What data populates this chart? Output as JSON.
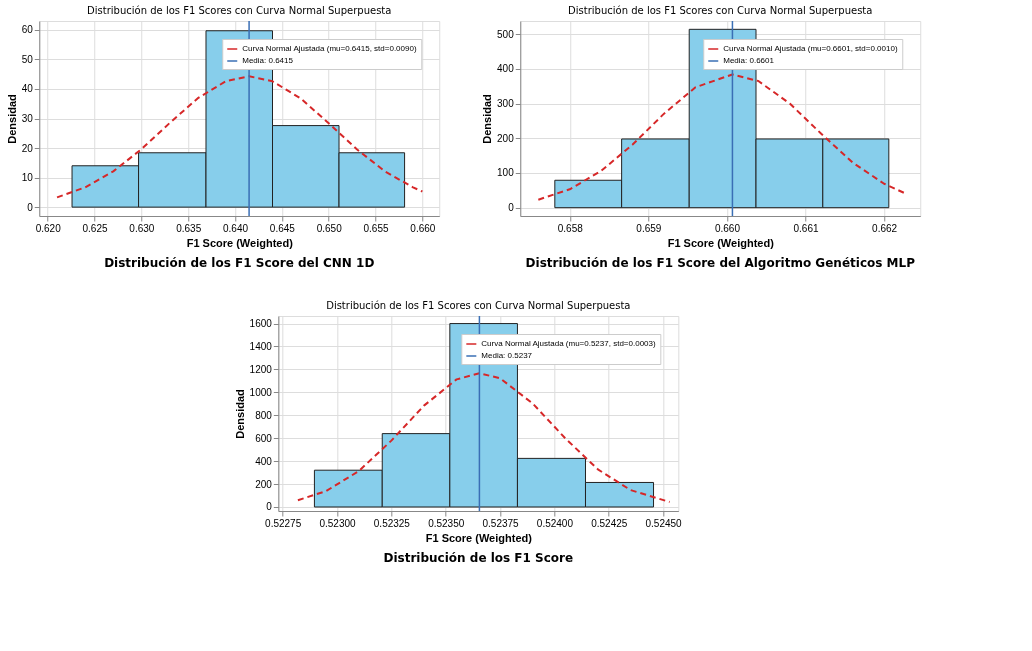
{
  "chart_data": [
    {
      "type": "histogram",
      "title": "Distribución de los F1 Scores con Curva Normal Superpuesta",
      "xlabel": "F1 Score (Weighted)",
      "ylabel": "Densidad",
      "color": "#87ceeb",
      "bins": [
        0.6226,
        0.6297,
        0.6369,
        0.644,
        0.6511,
        0.6581
      ],
      "values": [
        14.0,
        18.4,
        59.7,
        27.6,
        18.4
      ],
      "series": [
        {
          "type": "line",
          "name": "Curva Normal Ajustada (mu=0.6415, std=0.0090)",
          "color": "#d62728",
          "line_style": "dashed",
          "x": [
            0.621,
            0.624,
            0.627,
            0.63,
            0.633,
            0.636,
            0.639,
            0.6415,
            0.644,
            0.647,
            0.65,
            0.653,
            0.656,
            0.659,
            0.66
          ],
          "values": [
            3.3,
            6.7,
            12.1,
            19.6,
            28.4,
            36.8,
            42.6,
            44.3,
            42.6,
            36.8,
            28.4,
            19.6,
            12.1,
            6.7,
            5.3
          ]
        }
      ],
      "ref_lines": [
        {
          "axis": "x",
          "value": 0.6415,
          "label": "Media: 0.6415",
          "color": "#3a6fb5",
          "line_style": "solid"
        }
      ],
      "xlim": [
        0.6191,
        0.6618
      ],
      "ylim": [
        -3,
        63
      ],
      "xticks": [
        {
          "value": 0.62,
          "label": "0.620"
        },
        {
          "value": 0.625,
          "label": "0.625"
        },
        {
          "value": 0.63,
          "label": "0.630"
        },
        {
          "value": 0.635,
          "label": "0.635"
        },
        {
          "value": 0.64,
          "label": "0.640"
        },
        {
          "value": 0.645,
          "label": "0.645"
        },
        {
          "value": 0.65,
          "label": "0.650"
        },
        {
          "value": 0.655,
          "label": "0.655"
        },
        {
          "value": 0.66,
          "label": "0.660"
        }
      ],
      "yticks": [
        0,
        10,
        20,
        30,
        40,
        50,
        60
      ],
      "grid": true,
      "legend": "top right",
      "annotations": [
        "Distribución de  los F1 Score del CNN 1D"
      ]
    },
    {
      "type": "histogram",
      "title": "Distribución de los F1 Scores con Curva Normal Superpuesta",
      "xlabel": "F1 Score (Weighted)",
      "ylabel": "Densidad",
      "color": "#87ceeb",
      "bins": [
        0.65781,
        0.65866,
        0.65952,
        0.66037,
        0.66122,
        0.66206
      ],
      "values": [
        79,
        198,
        514,
        198,
        198
      ],
      "series": [
        {
          "type": "line",
          "name": "Curva Normal Ajustada (mu=0.6601, std=0.0010)",
          "color": "#d62728",
          "line_style": "dashed",
          "x": [
            0.6576,
            0.658,
            0.6584,
            0.6588,
            0.6592,
            0.6596,
            0.66007,
            0.6604,
            0.6608,
            0.6612,
            0.6616,
            0.662,
            0.66228
          ],
          "values": [
            23,
            53,
            106,
            182,
            271,
            347,
            384,
            365,
            300,
            213,
            130,
            69,
            40
          ]
        }
      ],
      "ref_lines": [
        {
          "axis": "x",
          "value": 0.66007,
          "label": "Media: 0.6601",
          "color": "#3a6fb5",
          "line_style": "solid"
        }
      ],
      "xlim": [
        0.65737,
        0.66246
      ],
      "ylim": [
        -24,
        538
      ],
      "xticks": [
        {
          "value": 0.658,
          "label": "0.658"
        },
        {
          "value": 0.659,
          "label": "0.659"
        },
        {
          "value": 0.66,
          "label": "0.660"
        },
        {
          "value": 0.661,
          "label": "0.661"
        },
        {
          "value": 0.662,
          "label": "0.662"
        }
      ],
      "yticks": [
        0,
        100,
        200,
        300,
        400,
        500
      ],
      "grid": true,
      "legend": "top right",
      "annotations": [
        "Distribución de  los F1 Score del Algoritmo Genéticos MLP"
      ]
    },
    {
      "type": "histogram",
      "title": "Distribución de los F1 Scores con Curva Normal Superpuesta",
      "xlabel": "F1 Score (Weighted)",
      "ylabel": "Densidad",
      "color": "#87ceeb",
      "bins": [
        0.522896,
        0.523208,
        0.523519,
        0.52383,
        0.524143,
        0.524456
      ],
      "values": [
        321,
        640,
        1600,
        424,
        214
      ],
      "series": [
        {
          "type": "line",
          "name": "Curva Normal Ajustada (mu=0.5237, std=0.0003)",
          "color": "#d62728",
          "line_style": "dashed",
          "x": [
            0.52282,
            0.52295,
            0.5231,
            0.52325,
            0.5234,
            0.52355,
            0.523655,
            0.52375,
            0.5239,
            0.52405,
            0.5242,
            0.52435,
            0.52453
          ],
          "values": [
            59,
            139,
            313,
            579,
            884,
            1113,
            1167,
            1123,
            903,
            599,
            328,
            148,
            44
          ]
        }
      ],
      "ref_lines": [
        {
          "axis": "x",
          "value": 0.523655,
          "label": "Media: 0.5237",
          "color": "#3a6fb5",
          "line_style": "solid"
        }
      ],
      "xlim": [
        0.52273,
        0.52457
      ],
      "ylim": [
        -35,
        1666
      ],
      "xticks": [
        {
          "value": 0.52275,
          "label": "0.52275"
        },
        {
          "value": 0.523,
          "label": "0.52300"
        },
        {
          "value": 0.52325,
          "label": "0.52325"
        },
        {
          "value": 0.5235,
          "label": "0.52350"
        },
        {
          "value": 0.52375,
          "label": "0.52375"
        },
        {
          "value": 0.524,
          "label": "0.52400"
        },
        {
          "value": 0.52425,
          "label": "0.52425"
        },
        {
          "value": 0.5245,
          "label": "0.52450"
        }
      ],
      "yticks": [
        0,
        200,
        400,
        600,
        800,
        1000,
        1200,
        1400,
        1600
      ],
      "grid": true,
      "legend": "top right",
      "annotations": [
        "Distribución de  los F1 Score"
      ]
    }
  ]
}
